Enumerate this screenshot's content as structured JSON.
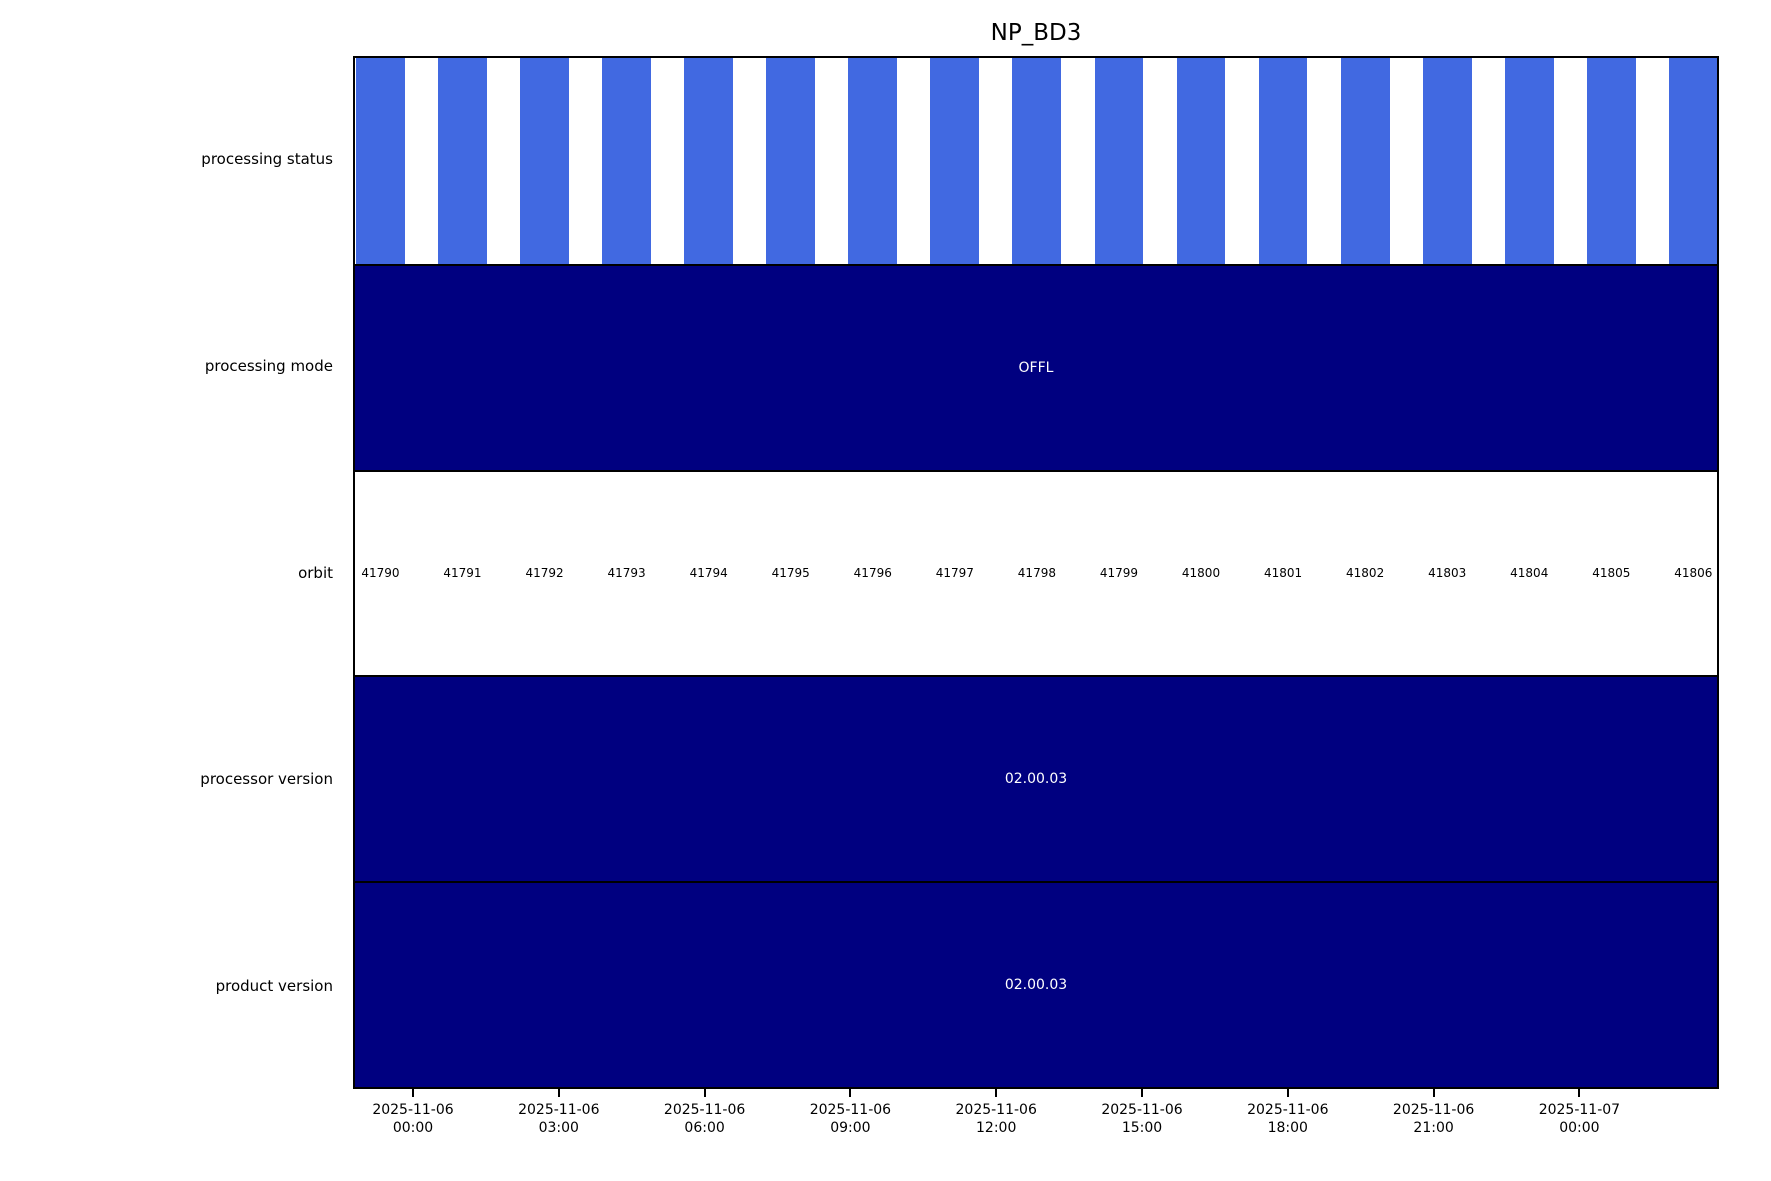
{
  "colors": {
    "bar_blue": "#4169E1",
    "band_navy": "#000080",
    "border_black": "#000000",
    "text_black": "#000000",
    "text_on_navy": "#ffffff",
    "background": "#ffffff"
  },
  "chart_data": {
    "type": "heatmap",
    "title": "NP_BD3",
    "grid": false,
    "legend": "none",
    "rows": [
      {
        "label": "processing status",
        "kind": "orbit-bars",
        "background": "#ffffff",
        "bar_color": "#4169E1",
        "values": [
          1,
          1,
          1,
          1,
          1,
          1,
          1,
          1,
          1,
          1,
          1,
          1,
          1,
          1,
          1,
          1,
          1
        ]
      },
      {
        "label": "processing mode",
        "kind": "filled-band",
        "color": "#000080",
        "text": "OFFL",
        "text_color": "#ffffff"
      },
      {
        "label": "orbit",
        "kind": "value-labels",
        "background": "#ffffff",
        "values": [
          41790,
          41791,
          41792,
          41793,
          41794,
          41795,
          41796,
          41797,
          41798,
          41799,
          41800,
          41801,
          41802,
          41803,
          41804,
          41805,
          41806
        ]
      },
      {
        "label": "processor version",
        "kind": "filled-band",
        "color": "#000080",
        "text": "02.00.03",
        "text_color": "#ffffff"
      },
      {
        "label": "product version",
        "kind": "filled-band",
        "color": "#000080",
        "text": "02.00.03",
        "text_color": "#ffffff"
      }
    ],
    "orbits": [
      41790,
      41791,
      41792,
      41793,
      41794,
      41795,
      41796,
      41797,
      41798,
      41799,
      41800,
      41801,
      41802,
      41803,
      41804,
      41805,
      41806
    ],
    "x_axis": {
      "tick_labels": [
        {
          "date": "2025-11-06",
          "time": "00:00"
        },
        {
          "date": "2025-11-06",
          "time": "03:00"
        },
        {
          "date": "2025-11-06",
          "time": "06:00"
        },
        {
          "date": "2025-11-06",
          "time": "09:00"
        },
        {
          "date": "2025-11-06",
          "time": "12:00"
        },
        {
          "date": "2025-11-06",
          "time": "15:00"
        },
        {
          "date": "2025-11-06",
          "time": "18:00"
        },
        {
          "date": "2025-11-06",
          "time": "21:00"
        },
        {
          "date": "2025-11-07",
          "time": "00:00"
        }
      ]
    }
  }
}
